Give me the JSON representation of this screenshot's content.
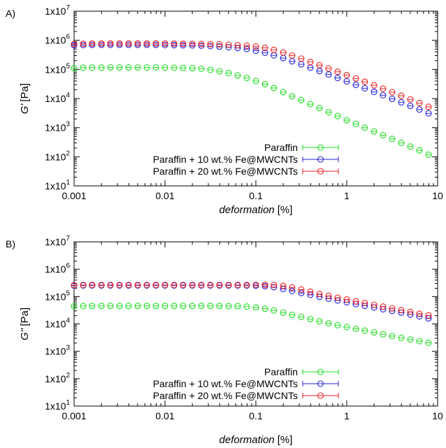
{
  "chart_data": [
    {
      "type": "scatter",
      "panel_label": "A)",
      "xlabel": "deformation",
      "xlabel_unit": "[%]",
      "ylabel": "G'",
      "ylabel_unit": "[Pa]",
      "x_scale": "log",
      "y_scale": "log",
      "xlim": [
        0.001,
        10
      ],
      "ylim": [
        10,
        10000000
      ],
      "x_ticks": [
        "0.001",
        "0.01",
        "0.1",
        "1",
        "10"
      ],
      "y_ticks": [
        {
          "base": "1x10",
          "exp": "1"
        },
        {
          "base": "1x10",
          "exp": "2"
        },
        {
          "base": "1x10",
          "exp": "3"
        },
        {
          "base": "1x10",
          "exp": "4"
        },
        {
          "base": "1x10",
          "exp": "5"
        },
        {
          "base": "1x10",
          "exp": "6"
        },
        {
          "base": "1x10",
          "exp": "7"
        }
      ],
      "grid": false,
      "legend_position": "bottom-right",
      "series": [
        {
          "name": "Paraffin",
          "color": "#22dd22",
          "x": [
            0.001,
            0.00126,
            0.00158,
            0.002,
            0.00251,
            0.00316,
            0.00398,
            0.00501,
            0.00631,
            0.00794,
            0.01,
            0.0126,
            0.0158,
            0.02,
            0.0251,
            0.0316,
            0.0398,
            0.0501,
            0.0631,
            0.0794,
            0.1,
            0.126,
            0.158,
            0.2,
            0.251,
            0.316,
            0.398,
            0.501,
            0.631,
            0.794,
            1,
            1.26,
            1.58,
            2,
            2.51,
            3.16,
            3.98,
            5.01,
            6.31,
            7.94
          ],
          "y": [
            110000,
            115000,
            116000,
            116000,
            117000,
            117000,
            117000,
            117000,
            117000,
            117000,
            116000,
            115000,
            113000,
            110000,
            105000,
            97000,
            87000,
            75000,
            62000,
            51000,
            40000,
            31000,
            23000,
            16500,
            12000,
            8800,
            6400,
            4700,
            3400,
            2500,
            1800,
            1350,
            1000,
            740,
            550,
            410,
            300,
            225,
            165,
            118
          ]
        },
        {
          "name": "Paraffin + 10 wt.% Fe@MWCNTs",
          "color": "#2222dd",
          "x": [
            0.001,
            0.00126,
            0.00158,
            0.002,
            0.00251,
            0.00316,
            0.00398,
            0.00501,
            0.00631,
            0.00794,
            0.01,
            0.0126,
            0.0158,
            0.02,
            0.0251,
            0.0316,
            0.0398,
            0.0501,
            0.0631,
            0.0794,
            0.1,
            0.126,
            0.158,
            0.2,
            0.251,
            0.316,
            0.398,
            0.501,
            0.631,
            0.794,
            1,
            1.26,
            1.58,
            2,
            2.51,
            3.16,
            3.98,
            5.01,
            6.31,
            7.94
          ],
          "y": [
            680000,
            690000,
            700000,
            700000,
            700000,
            700000,
            700000,
            700000,
            700000,
            700000,
            690000,
            685000,
            680000,
            670000,
            655000,
            635000,
            610000,
            580000,
            545000,
            500000,
            440000,
            375000,
            305000,
            245000,
            190000,
            150000,
            115000,
            88000,
            67000,
            51000,
            39000,
            29500,
            22500,
            17000,
            13000,
            9800,
            7400,
            5600,
            4200,
            3100
          ]
        },
        {
          "name": "Paraffin + 20 wt.% Fe@MWCNTs",
          "color": "#ee2222",
          "x": [
            0.001,
            0.00126,
            0.00158,
            0.002,
            0.00251,
            0.00316,
            0.00398,
            0.00501,
            0.00631,
            0.00794,
            0.01,
            0.0126,
            0.0158,
            0.02,
            0.0251,
            0.0316,
            0.0398,
            0.0501,
            0.0631,
            0.0794,
            0.1,
            0.126,
            0.158,
            0.2,
            0.251,
            0.316,
            0.398,
            0.501,
            0.631,
            0.794,
            1,
            1.26,
            1.58,
            2,
            2.51,
            3.16,
            3.98,
            5.01,
            6.31,
            7.94
          ],
          "y": [
            740000,
            760000,
            770000,
            775000,
            780000,
            780000,
            780000,
            780000,
            780000,
            780000,
            775000,
            770000,
            765000,
            760000,
            750000,
            740000,
            725000,
            705000,
            680000,
            650000,
            610000,
            550000,
            470000,
            380000,
            300000,
            235000,
            180000,
            140000,
            108000,
            83000,
            64000,
            49000,
            37500,
            28500,
            21800,
            16500,
            12500,
            9400,
            7000,
            5200
          ]
        }
      ]
    },
    {
      "type": "scatter",
      "panel_label": "B)",
      "xlabel": "deformation",
      "xlabel_unit": "[%]",
      "ylabel": "G''",
      "ylabel_unit": "[Pa]",
      "x_scale": "log",
      "y_scale": "log",
      "xlim": [
        0.001,
        10
      ],
      "ylim": [
        10,
        10000000
      ],
      "x_ticks": [
        "0.001",
        "0.01",
        "0.1",
        "1",
        "10"
      ],
      "y_ticks": [
        {
          "base": "1x10",
          "exp": "1"
        },
        {
          "base": "1x10",
          "exp": "2"
        },
        {
          "base": "1x10",
          "exp": "3"
        },
        {
          "base": "1x10",
          "exp": "4"
        },
        {
          "base": "1x10",
          "exp": "5"
        },
        {
          "base": "1x10",
          "exp": "6"
        },
        {
          "base": "1x10",
          "exp": "7"
        }
      ],
      "grid": false,
      "legend_position": "bottom-right",
      "series": [
        {
          "name": "Paraffin",
          "color": "#22dd22",
          "x": [
            0.001,
            0.00126,
            0.00158,
            0.002,
            0.00251,
            0.00316,
            0.00398,
            0.00501,
            0.00631,
            0.00794,
            0.01,
            0.0126,
            0.0158,
            0.02,
            0.0251,
            0.0316,
            0.0398,
            0.0501,
            0.0631,
            0.0794,
            0.1,
            0.126,
            0.158,
            0.2,
            0.251,
            0.316,
            0.398,
            0.501,
            0.631,
            0.794,
            1,
            1.26,
            1.58,
            2,
            2.51,
            3.16,
            3.98,
            5.01,
            6.31,
            7.94
          ],
          "y": [
            44000,
            45000,
            45500,
            45500,
            45500,
            45500,
            45500,
            45500,
            45500,
            45500,
            45500,
            45500,
            45500,
            45500,
            45500,
            45500,
            45500,
            45000,
            44500,
            43000,
            40000,
            36000,
            31000,
            26000,
            21500,
            18000,
            15000,
            12500,
            10500,
            9000,
            7700,
            6600,
            5700,
            4900,
            4200,
            3600,
            3100,
            2700,
            2350,
            2050
          ]
        },
        {
          "name": "Paraffin + 10 wt.% Fe@MWCNTs",
          "color": "#2222dd",
          "x": [
            0.001,
            0.00126,
            0.00158,
            0.002,
            0.00251,
            0.00316,
            0.00398,
            0.00501,
            0.00631,
            0.00794,
            0.01,
            0.0126,
            0.0158,
            0.02,
            0.0251,
            0.0316,
            0.0398,
            0.0501,
            0.0631,
            0.0794,
            0.1,
            0.126,
            0.158,
            0.2,
            0.251,
            0.316,
            0.398,
            0.501,
            0.631,
            0.794,
            1,
            1.26,
            1.58,
            2,
            2.51,
            3.16,
            3.98,
            5.01,
            6.31,
            7.94
          ],
          "y": [
            250000,
            255000,
            255000,
            255000,
            255000,
            255000,
            255000,
            255000,
            255000,
            255000,
            255000,
            255000,
            255000,
            255000,
            255000,
            255000,
            255000,
            255000,
            255000,
            253000,
            250000,
            240000,
            220000,
            190000,
            160000,
            135000,
            115000,
            98000,
            84000,
            72000,
            62000,
            53000,
            46000,
            40000,
            34500,
            30000,
            26000,
            22000,
            19000,
            16000
          ]
        },
        {
          "name": "Paraffin + 20 wt.% Fe@MWCNTs",
          "color": "#ee2222",
          "x": [
            0.001,
            0.00126,
            0.00158,
            0.002,
            0.00251,
            0.00316,
            0.00398,
            0.00501,
            0.00631,
            0.00794,
            0.01,
            0.0126,
            0.0158,
            0.02,
            0.0251,
            0.0316,
            0.0398,
            0.0501,
            0.0631,
            0.0794,
            0.1,
            0.126,
            0.158,
            0.2,
            0.251,
            0.316,
            0.398,
            0.501,
            0.631,
            0.794,
            1,
            1.26,
            1.58,
            2,
            2.51,
            3.16,
            3.98,
            5.01,
            6.31,
            7.94
          ],
          "y": [
            260000,
            265000,
            265000,
            265000,
            265000,
            265000,
            265000,
            265000,
            265000,
            265000,
            265000,
            265000,
            265000,
            265000,
            265000,
            265000,
            265000,
            265000,
            265000,
            265000,
            266000,
            268000,
            265000,
            245000,
            215000,
            180000,
            150000,
            125000,
            106000,
            91000,
            78000,
            67000,
            58000,
            50000,
            43000,
            37000,
            32000,
            27500,
            23500,
            20500
          ]
        }
      ]
    }
  ]
}
